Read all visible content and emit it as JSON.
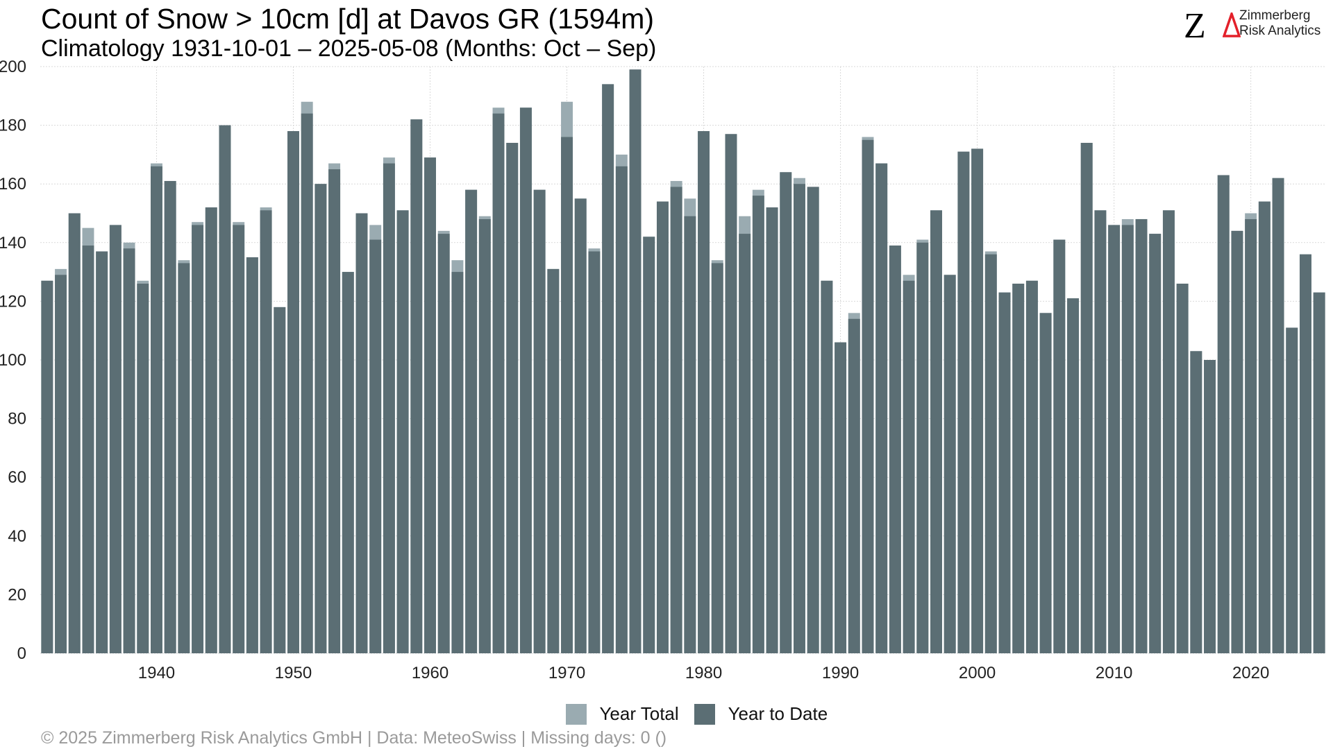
{
  "header": {
    "title": "Count of Snow > 10cm [d] at Davos  GR (1594m)",
    "subtitle": "Climatology 1931-10-01 – 2025-05-08 (Months: Oct – Sep)"
  },
  "logo": {
    "mark": "Z",
    "line1": "Zimmerberg",
    "line2": "Risk Analytics",
    "accent_color": "#e3202a"
  },
  "footer": {
    "text": "©  2025 Zimmerberg Risk Analytics GmbH | Data: MeteoSwiss | Missing days: 0 ()"
  },
  "colors": {
    "year_total": "#9aabb1",
    "year_to_date": "#5b6e74",
    "grid": "#d9d9d9"
  },
  "chart_data": {
    "type": "bar",
    "title": "Count of Snow > 10cm [d] at Davos  GR (1594m)",
    "subtitle": "Climatology 1931-10-01 – 2025-05-08 (Months: Oct – Sep)",
    "xlabel": "",
    "ylabel": "",
    "ylim": [
      0,
      200
    ],
    "yticks": [
      0,
      20,
      40,
      60,
      80,
      100,
      120,
      140,
      160,
      180,
      200
    ],
    "xticks": [
      1940,
      1950,
      1960,
      1970,
      1980,
      1990,
      2000,
      2010,
      2020
    ],
    "grid": true,
    "legend_position": "bottom",
    "x": [
      1932,
      1933,
      1934,
      1935,
      1936,
      1937,
      1938,
      1939,
      1940,
      1941,
      1942,
      1943,
      1944,
      1945,
      1946,
      1947,
      1948,
      1949,
      1950,
      1951,
      1952,
      1953,
      1954,
      1955,
      1956,
      1957,
      1958,
      1959,
      1960,
      1961,
      1962,
      1963,
      1964,
      1965,
      1966,
      1967,
      1968,
      1969,
      1970,
      1971,
      1972,
      1973,
      1974,
      1975,
      1976,
      1977,
      1978,
      1979,
      1980,
      1981,
      1982,
      1983,
      1984,
      1985,
      1986,
      1987,
      1988,
      1989,
      1990,
      1991,
      1992,
      1993,
      1994,
      1995,
      1996,
      1997,
      1998,
      1999,
      2000,
      2001,
      2002,
      2003,
      2004,
      2005,
      2006,
      2007,
      2008,
      2009,
      2010,
      2011,
      2012,
      2013,
      2014,
      2015,
      2016,
      2017,
      2018,
      2019,
      2020,
      2021,
      2022,
      2023,
      2024,
      2025
    ],
    "series": [
      {
        "name": "Year Total",
        "values": [
          127,
          131,
          150,
          145,
          137,
          146,
          140,
          127,
          167,
          161,
          134,
          147,
          152,
          180,
          147,
          135,
          152,
          118,
          178,
          188,
          160,
          167,
          130,
          150,
          146,
          169,
          151,
          182,
          169,
          144,
          134,
          158,
          149,
          186,
          174,
          186,
          158,
          131,
          188,
          155,
          138,
          194,
          170,
          199,
          142,
          154,
          161,
          155,
          178,
          134,
          177,
          149,
          158,
          152,
          164,
          162,
          159,
          127,
          106,
          116,
          176,
          167,
          139,
          129,
          141,
          151,
          129,
          171,
          172,
          137,
          123,
          126,
          127,
          116,
          141,
          121,
          174,
          151,
          146,
          148,
          148,
          143,
          151,
          126,
          103,
          100,
          163,
          144,
          150,
          154,
          162,
          111,
          136,
          123
        ]
      },
      {
        "name": "Year to Date",
        "values": [
          127,
          129,
          150,
          139,
          137,
          146,
          138,
          126,
          166,
          161,
          133,
          146,
          152,
          180,
          146,
          135,
          151,
          118,
          178,
          184,
          160,
          165,
          130,
          150,
          141,
          167,
          151,
          182,
          169,
          143,
          130,
          158,
          148,
          184,
          174,
          186,
          158,
          131,
          176,
          155,
          137,
          194,
          166,
          199,
          142,
          154,
          159,
          149,
          178,
          133,
          177,
          143,
          156,
          152,
          164,
          160,
          159,
          127,
          106,
          114,
          175,
          167,
          139,
          127,
          140,
          151,
          129,
          171,
          172,
          136,
          123,
          126,
          127,
          116,
          141,
          121,
          174,
          151,
          146,
          146,
          148,
          143,
          151,
          126,
          103,
          100,
          163,
          144,
          148,
          154,
          162,
          111,
          136,
          123
        ]
      }
    ]
  }
}
